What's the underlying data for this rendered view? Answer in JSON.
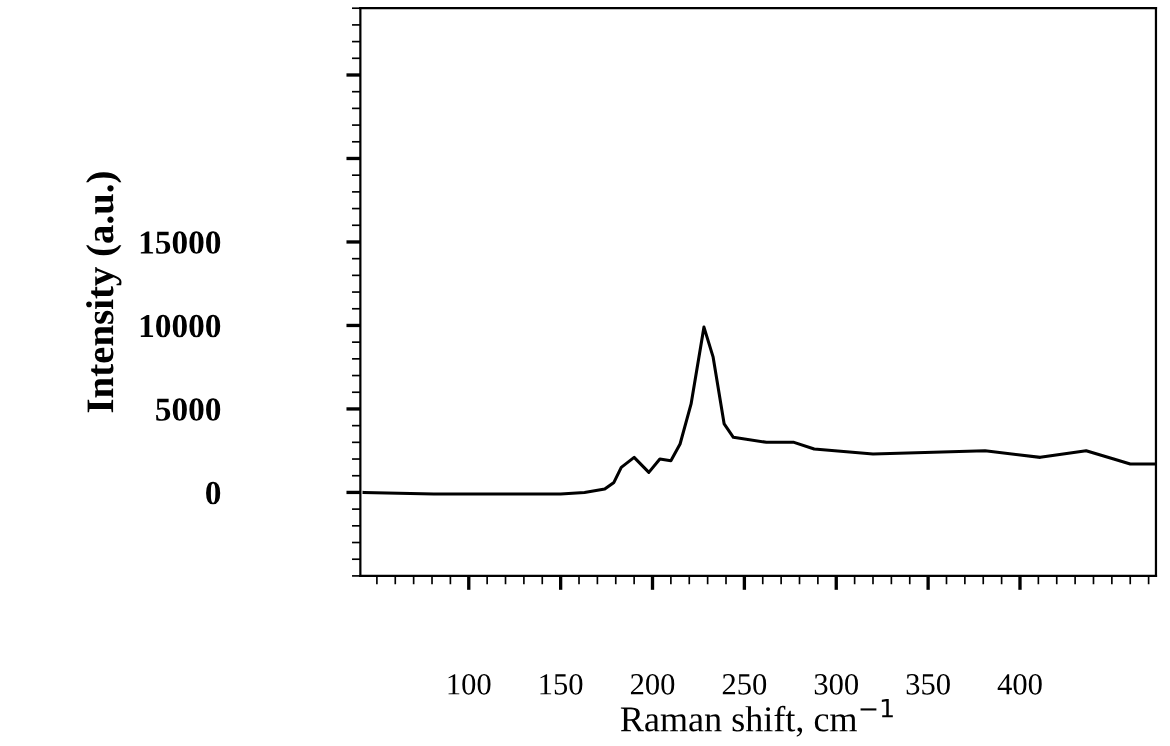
{
  "chart_data": {
    "type": "line",
    "xlabel": "Raman shift, cm$^{−1}$",
    "ylabel": "Intensity (a.u.)",
    "series": [
      {
        "color": "#000000",
        "x": [
          43,
          81,
          85,
          150,
          163,
          174,
          179,
          183,
          190,
          198,
          204,
          210,
          215,
          221,
          228,
          233,
          239,
          244,
          262,
          277,
          288,
          320,
          381,
          411,
          436,
          451,
          460,
          474
        ],
        "values": [
          0,
          -100,
          -100,
          -100,
          0,
          200,
          600,
          1500,
          2100,
          1200,
          2000,
          1900,
          2900,
          5300,
          9900,
          8100,
          4100,
          3300,
          3000,
          3000,
          2600,
          2300,
          2500,
          2100,
          2500,
          2000,
          1700,
          1700
        ]
      }
    ],
    "xlim": [
      41,
      474
    ],
    "ylim": [
      -5000,
      29000
    ],
    "xticks": [
      100,
      150,
      200,
      250,
      300,
      350,
      400
    ],
    "yticks": [
      0,
      5000,
      10000,
      15000,
      {
        "value": 20000,
        "label": null
      },
      {
        "value": 25000,
        "label": null
      }
    ],
    "grid": false,
    "legend": false,
    "marker": "none",
    "line_style": "solid"
  }
}
